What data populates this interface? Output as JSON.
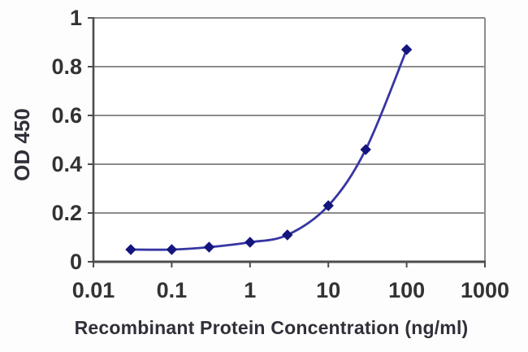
{
  "chart_data": {
    "type": "line",
    "title": "",
    "xlabel": "Recombinant Protein Concentration (ng/ml)",
    "ylabel": "OD 450",
    "x_scale": "log",
    "xlim": [
      0.01,
      1000
    ],
    "ylim": [
      0,
      1
    ],
    "x_ticks": [
      0.01,
      0.1,
      1,
      10,
      100,
      1000
    ],
    "x_tick_labels": [
      "0.01",
      "0.1",
      "1",
      "10",
      "100",
      "1000"
    ],
    "y_ticks": [
      0,
      0.2,
      0.4,
      0.6,
      0.8,
      1
    ],
    "y_tick_labels": [
      "0",
      "0.2",
      "0.4",
      "0.6",
      "0.8",
      "1"
    ],
    "grid": "horizontal",
    "legend": "none",
    "series": [
      {
        "name": "OD 450 standard curve",
        "marker": "diamond",
        "x": [
          0.03,
          0.1,
          0.3,
          1,
          3,
          10,
          30,
          100
        ],
        "y": [
          0.05,
          0.05,
          0.06,
          0.08,
          0.11,
          0.23,
          0.46,
          0.87
        ]
      }
    ],
    "colors": {
      "line": "#3636a3",
      "marker": "#15157e",
      "grid": "#8c8c8c",
      "axis": "#4d4d4d",
      "text": "#333333",
      "plot_bg": "#ffffff"
    }
  }
}
